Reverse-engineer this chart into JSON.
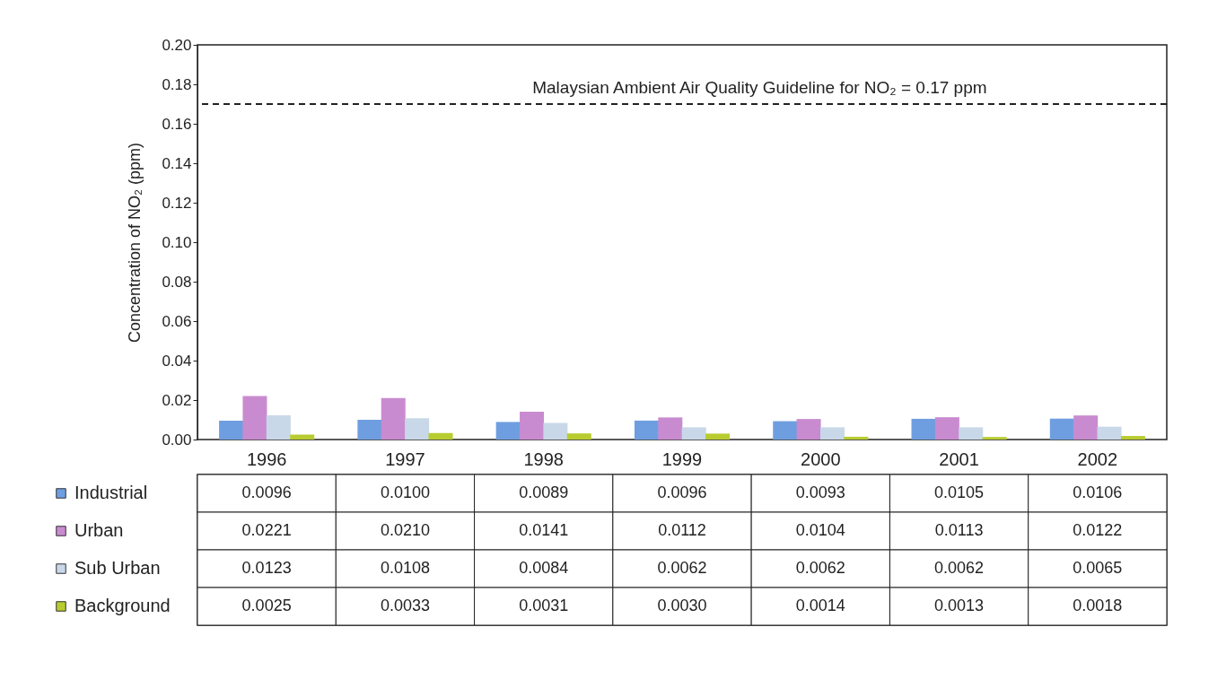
{
  "chart_data": {
    "type": "bar",
    "ylabel": "Concentration of NO₂ (ppm)",
    "categories": [
      "1996",
      "1997",
      "1998",
      "1999",
      "2000",
      "2001",
      "2002"
    ],
    "series": [
      {
        "name": "Industrial",
        "color": "#6f9ee0",
        "values": [
          0.0096,
          0.01,
          0.0089,
          0.0096,
          0.0093,
          0.0105,
          0.0106
        ],
        "value_labels": [
          "0.0096",
          "0.0100",
          "0.0089",
          "0.0096",
          "0.0093",
          "0.0105",
          "0.0106"
        ]
      },
      {
        "name": "Urban",
        "color": "#c98bd0",
        "values": [
          0.0221,
          0.021,
          0.0141,
          0.0112,
          0.0104,
          0.0113,
          0.0122
        ],
        "value_labels": [
          "0.0221",
          "0.0210",
          "0.0141",
          "0.0112",
          "0.0104",
          "0.0113",
          "0.0122"
        ]
      },
      {
        "name": "Sub Urban",
        "color": "#c8d8e8",
        "values": [
          0.0123,
          0.0108,
          0.0084,
          0.0062,
          0.0062,
          0.0062,
          0.0065
        ],
        "value_labels": [
          "0.0123",
          "0.0108",
          "0.0084",
          "0.0062",
          "0.0062",
          "0.0062",
          "0.0065"
        ]
      },
      {
        "name": "Background",
        "color": "#b8cc30",
        "values": [
          0.0025,
          0.0033,
          0.0031,
          0.003,
          0.0014,
          0.0013,
          0.0018
        ],
        "value_labels": [
          "0.0025",
          "0.0033",
          "0.0031",
          "0.0030",
          "0.0014",
          "0.0013",
          "0.0018"
        ]
      }
    ],
    "ylim": [
      0,
      0.2
    ],
    "yticks": [
      {
        "value": 0,
        "label": "0.00"
      },
      {
        "value": 0.02,
        "label": "0.02"
      },
      {
        "value": 0.04,
        "label": "0.04"
      },
      {
        "value": 0.06,
        "label": "0.06"
      },
      {
        "value": 0.08,
        "label": "0.08"
      },
      {
        "value": 0.1,
        "label": "0.10"
      },
      {
        "value": 0.12,
        "label": "0.12"
      },
      {
        "value": 0.14,
        "label": "0.14"
      },
      {
        "value": 0.16,
        "label": "0.16"
      },
      {
        "value": 0.18,
        "label": "0.18"
      },
      {
        "value": 0.2,
        "label": "0.20"
      }
    ],
    "ref_lines": [
      {
        "axis": "y",
        "value": 0.17,
        "label": "Malaysian Ambient Air Quality Guideline for NO₂ = 0.17 ppm",
        "color": "#222222",
        "line_style": "dashed"
      }
    ],
    "grid": false,
    "legend": "bottom"
  }
}
